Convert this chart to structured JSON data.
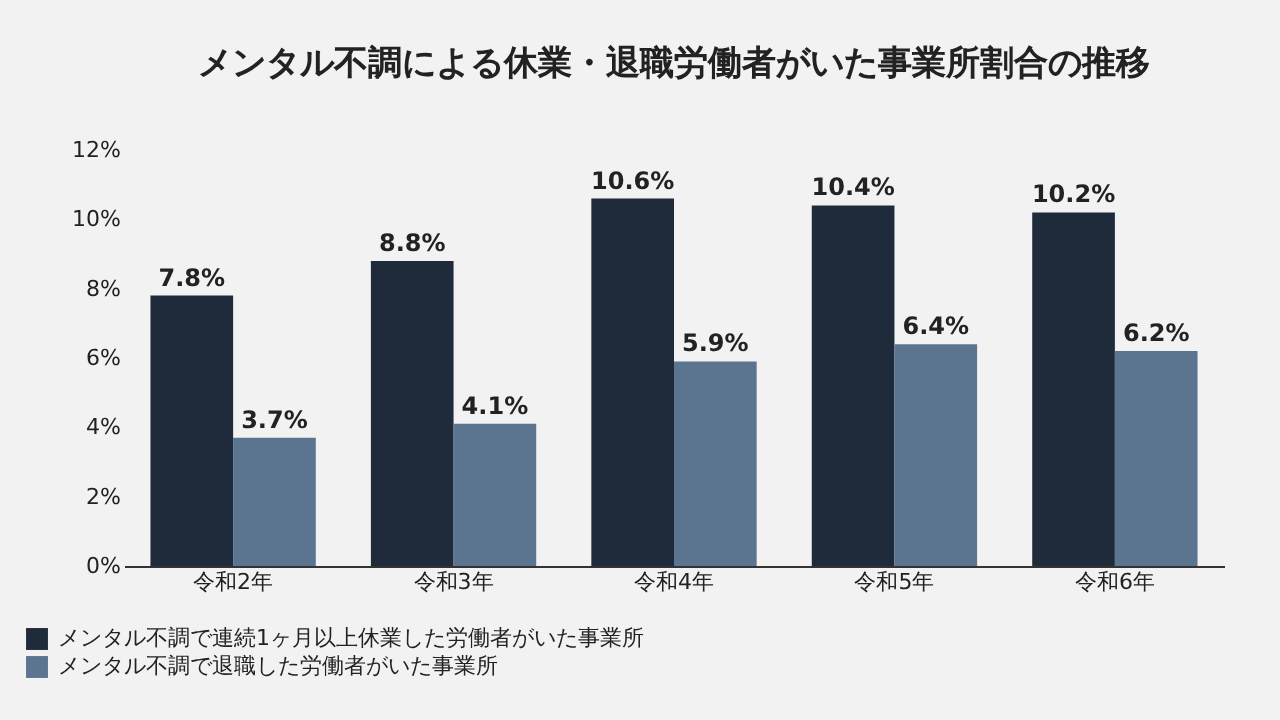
{
  "chart_data": {
    "type": "bar",
    "title": "メンタル不調による休業・退職労働者がいた事業所割合の推移",
    "categories": [
      "令和2年",
      "令和3年",
      "令和4年",
      "令和5年",
      "令和6年"
    ],
    "series": [
      {
        "name": "メンタル不調で連続1ヶ月以上休業した労働者がいた事業所",
        "color": "#1f2a3a",
        "values": [
          7.8,
          8.8,
          10.6,
          10.4,
          10.2
        ],
        "value_labels": [
          "7.8%",
          "8.8%",
          "10.6%",
          "10.4%",
          "10.2%"
        ]
      },
      {
        "name": "メンタル不調で退職した労働者がいた事業所",
        "color": "#5b7490",
        "values": [
          3.7,
          4.1,
          5.9,
          6.4,
          6.2
        ],
        "value_labels": [
          "3.7%",
          "4.1%",
          "5.9%",
          "6.4%",
          "6.2%"
        ]
      }
    ],
    "ylim": [
      0,
      12
    ],
    "yticks": [
      {
        "value": 0,
        "label": "0%"
      },
      {
        "value": 2,
        "label": "2%"
      },
      {
        "value": 4,
        "label": "4%"
      },
      {
        "value": 6,
        "label": "6%"
      },
      {
        "value": 8,
        "label": "8%"
      },
      {
        "value": 10,
        "label": "10%"
      },
      {
        "value": 12,
        "label": "12%"
      }
    ],
    "grid": false,
    "legend": "bottom left"
  }
}
